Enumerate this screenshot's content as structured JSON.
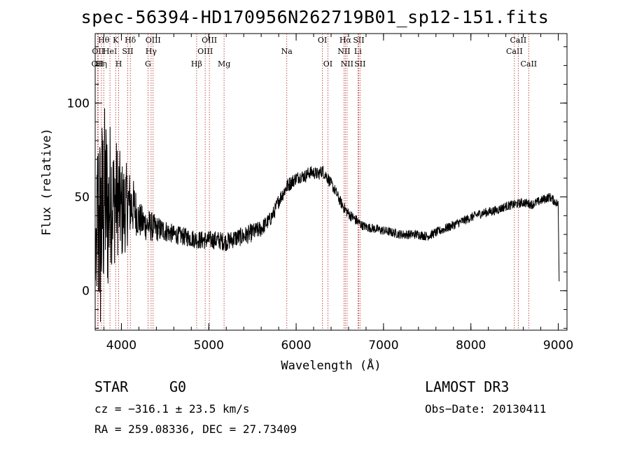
{
  "chart_data": {
    "type": "line",
    "title": "spec-56394-HD170956N262719B01_sp12-151.fits",
    "xlabel": "Wavelength (Å)",
    "ylabel": "Flux (relative)",
    "xlim": [
      3700,
      9100
    ],
    "ylim": [
      -21,
      137
    ],
    "xticks": [
      4000,
      5000,
      6000,
      7000,
      8000,
      9000
    ],
    "xtick_labels": [
      "4000",
      "5000",
      "6000",
      "7000",
      "8000",
      "9000"
    ],
    "yticks": [
      0,
      50,
      100
    ],
    "ytick_labels": [
      "0",
      "50",
      "100"
    ],
    "grid": false,
    "series": [
      {
        "name": "flux",
        "x": [
          3700,
          3730,
          3760,
          3790,
          3820,
          3850,
          3880,
          3910,
          3940,
          3970,
          4000,
          4050,
          4100,
          4150,
          4200,
          4250,
          4300,
          4350,
          4400,
          4500,
          4600,
          4700,
          4800,
          4900,
          5000,
          5100,
          5200,
          5300,
          5400,
          5500,
          5600,
          5700,
          5750,
          5800,
          5850,
          5900,
          5950,
          6000,
          6050,
          6100,
          6150,
          6200,
          6250,
          6300,
          6350,
          6400,
          6450,
          6500,
          6550,
          6600,
          6650,
          6700,
          6750,
          6800,
          6900,
          7000,
          7100,
          7200,
          7300,
          7400,
          7500,
          7600,
          7700,
          7800,
          7900,
          8000,
          8100,
          8200,
          8300,
          8400,
          8500,
          8600,
          8700,
          8800,
          8900,
          8950,
          9000,
          9010
        ],
        "y": [
          5,
          40,
          30,
          45,
          50,
          40,
          55,
          45,
          50,
          48,
          42,
          45,
          46,
          44,
          38,
          36,
          35,
          34,
          33,
          32,
          30,
          29,
          28,
          27,
          27,
          27,
          26,
          28,
          29,
          31,
          33,
          38,
          42,
          48,
          52,
          56,
          58,
          60,
          61,
          61,
          63,
          63,
          62,
          64,
          61,
          57,
          53,
          48,
          44,
          41,
          39,
          37,
          35,
          34,
          33,
          32,
          31,
          30,
          30,
          30,
          29,
          31,
          33,
          35,
          37,
          39,
          41,
          42,
          43,
          45,
          46,
          47,
          46,
          48,
          50,
          48,
          46,
          5
        ],
        "noise": [
          0,
          60,
          60,
          55,
          50,
          45,
          40,
          35,
          32,
          30,
          28,
          24,
          18,
          14,
          10,
          9,
          9,
          8,
          7,
          6,
          5,
          5,
          5,
          5,
          5,
          5,
          5,
          5,
          5,
          5,
          4.5,
          4,
          4,
          4,
          4,
          4,
          4,
          3.5,
          3.5,
          3.5,
          3.5,
          3.5,
          3.5,
          3.5,
          3.5,
          3,
          3,
          3,
          3,
          3,
          3,
          3,
          2.5,
          2.5,
          2.5,
          2.5,
          2.5,
          2.5,
          2.5,
          2.5,
          2.5,
          2.5,
          2.5,
          2.5,
          2.5,
          2.5,
          2.5,
          2.5,
          2.5,
          2.5,
          2.5,
          2.5,
          2.5,
          2.5,
          2.5,
          2.5,
          2.5,
          0
        ]
      }
    ],
    "lines": [
      {
        "wave": 3727,
        "label": "OII",
        "row": 3
      },
      {
        "wave": 3734,
        "label": "OII",
        "row": 2
      },
      {
        "wave": 3771,
        "label": "Hη",
        "row": 3
      },
      {
        "wave": 3798,
        "label": "Hθ",
        "row": 1
      },
      {
        "wave": 3869,
        "label": "HeI",
        "row": 2
      },
      {
        "wave": 3934,
        "label": "K",
        "row": 1
      },
      {
        "wave": 3969,
        "label": "H",
        "row": 3
      },
      {
        "wave": 4072,
        "label": "SII",
        "row": 2
      },
      {
        "wave": 4102,
        "label": "Hδ",
        "row": 1
      },
      {
        "wave": 4304,
        "label": "G",
        "row": 3
      },
      {
        "wave": 4340,
        "label": "Hγ",
        "row": 2
      },
      {
        "wave": 4363,
        "label": "OIII",
        "row": 1
      },
      {
        "wave": 4861,
        "label": "Hβ",
        "row": 3
      },
      {
        "wave": 4959,
        "label": "OIII",
        "row": 2
      },
      {
        "wave": 5007,
        "label": "OIII",
        "row": 1
      },
      {
        "wave": 5175,
        "label": "Mg",
        "row": 3
      },
      {
        "wave": 5893,
        "label": "Na",
        "row": 2
      },
      {
        "wave": 6300,
        "label": "OI",
        "row": 1
      },
      {
        "wave": 6363,
        "label": "OI",
        "row": 3
      },
      {
        "wave": 6548,
        "label": "NII",
        "row": 2
      },
      {
        "wave": 6563,
        "label": "Hα",
        "row": 1
      },
      {
        "wave": 6583,
        "label": "NII",
        "row": 3
      },
      {
        "wave": 6707,
        "label": "Li",
        "row": 2
      },
      {
        "wave": 6716,
        "label": "SII",
        "row": 1
      },
      {
        "wave": 6731,
        "label": "SII",
        "row": 3
      },
      {
        "wave": 8498,
        "label": "CaII",
        "row": 2
      },
      {
        "wave": 8542,
        "label": "CaII",
        "row": 1
      },
      {
        "wave": 8662,
        "label": "CaII",
        "row": 3
      }
    ]
  },
  "info": {
    "class": "STAR",
    "subclass": "G0",
    "survey": "LAMOST DR3",
    "cz": "cz = −316.1 ± 23.5 km/s",
    "obs_date": "Obs−Date: 20130411",
    "coords": "RA = 259.08336, DEC =  27.73409"
  }
}
